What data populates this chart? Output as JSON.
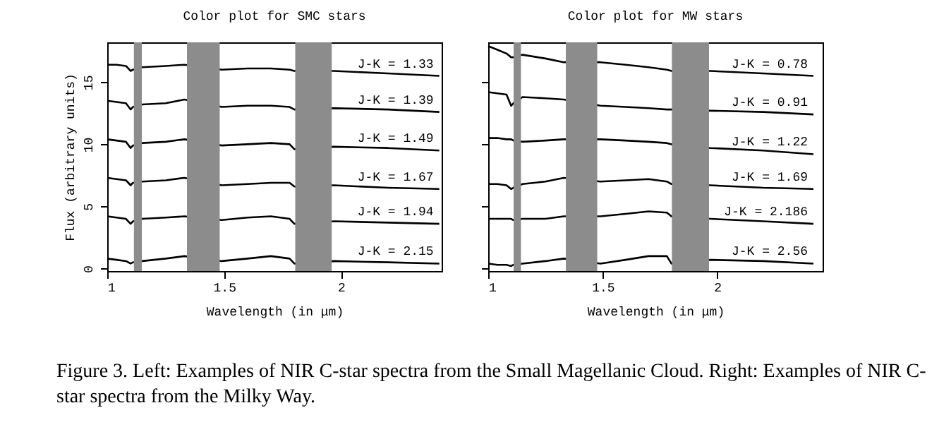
{
  "chart_data": [
    {
      "type": "line",
      "title": "Color plot for SMC stars",
      "xlabel": "Wavelength (in μm)",
      "ylabel": "Flux (arbitrary units)",
      "annotations": [
        "Figure 3. Left: Examples of NIR C-star spectra from the Small Magellanic Cloud. Right: Examples of NIR C-star spectra from the Milky Way."
      ],
      "x": [
        1.0,
        1.04,
        1.08,
        1.1,
        1.11,
        1.15,
        1.25,
        1.33,
        1.49,
        1.6,
        1.7,
        1.78,
        1.8,
        1.97,
        2.2,
        2.42
      ],
      "xlim": [
        1,
        2.43
      ],
      "xticks": [
        1,
        1.5,
        2
      ],
      "ylim": [
        -0.2,
        18.2
      ],
      "yticks": [
        0,
        5,
        10,
        15
      ],
      "bands": [
        {
          "axis": "x",
          "from": 1.114,
          "to": 1.148,
          "color": "#8c8c8c"
        },
        {
          "axis": "x",
          "from": 1.341,
          "to": 1.481,
          "color": "#8c8c8c"
        },
        {
          "axis": "x",
          "from": 1.804,
          "to": 1.96,
          "color": "#8c8c8c"
        }
      ],
      "series": [
        {
          "name": "J-K = 1.33",
          "color": "#000000",
          "values": [
            16.4,
            16.4,
            16.3,
            15.9,
            16.0,
            16.2,
            16.3,
            16.4,
            16.0,
            16.1,
            16.1,
            16.0,
            15.9,
            15.9,
            15.7,
            15.5
          ]
        },
        {
          "name": "J-K = 1.39",
          "color": "#000000",
          "values": [
            13.5,
            13.4,
            13.3,
            12.8,
            13.0,
            13.2,
            13.3,
            13.6,
            13.0,
            13.1,
            13.1,
            13.0,
            12.8,
            12.9,
            12.8,
            12.6
          ]
        },
        {
          "name": "J-K = 1.49",
          "color": "#000000",
          "values": [
            10.4,
            10.3,
            10.2,
            9.7,
            9.9,
            10.1,
            10.2,
            10.4,
            9.9,
            10.0,
            10.1,
            10.0,
            9.6,
            9.8,
            9.7,
            9.5
          ]
        },
        {
          "name": "J-K = 1.67",
          "color": "#000000",
          "values": [
            7.3,
            7.2,
            7.1,
            6.7,
            6.9,
            7.0,
            7.1,
            7.3,
            6.7,
            6.8,
            6.9,
            6.9,
            6.6,
            6.7,
            6.5,
            6.4
          ]
        },
        {
          "name": "J-K = 1.94",
          "color": "#000000",
          "values": [
            4.2,
            4.1,
            4.0,
            3.6,
            3.8,
            4.0,
            4.1,
            4.2,
            3.9,
            4.1,
            4.2,
            4.0,
            3.6,
            3.8,
            3.7,
            3.6
          ]
        },
        {
          "name": "J-K = 2.15",
          "color": "#000000",
          "values": [
            0.8,
            0.7,
            0.6,
            0.4,
            0.5,
            0.6,
            0.8,
            1.0,
            0.6,
            0.8,
            1.0,
            0.8,
            0.4,
            0.6,
            0.5,
            0.4
          ]
        }
      ]
    },
    {
      "type": "line",
      "title": "Color plot for MW stars",
      "xlabel": "Wavelength (in μm)",
      "tick_labels": "x",
      "x": [
        1.0,
        1.04,
        1.08,
        1.1,
        1.11,
        1.15,
        1.25,
        1.33,
        1.49,
        1.6,
        1.7,
        1.78,
        1.8,
        1.97,
        2.2,
        2.42
      ],
      "xlim": [
        1,
        2.46
      ],
      "xticks": [
        1,
        1.5,
        2
      ],
      "ylim": [
        -0.2,
        18.2
      ],
      "yticks": [
        0,
        5,
        10,
        15
      ],
      "bands": [
        {
          "axis": "x",
          "from": 1.111,
          "to": 1.143,
          "color": "#8c8c8c"
        },
        {
          "axis": "x",
          "from": 1.339,
          "to": 1.476,
          "color": "#8c8c8c"
        },
        {
          "axis": "x",
          "from": 1.802,
          "to": 1.964,
          "color": "#8c8c8c"
        }
      ],
      "series": [
        {
          "name": "J-K = 0.78",
          "color": "#000000",
          "values": [
            17.9,
            17.6,
            17.3,
            17.0,
            17.0,
            17.2,
            16.9,
            16.6,
            16.6,
            16.4,
            16.2,
            16.0,
            15.9,
            15.9,
            15.7,
            15.5
          ]
        },
        {
          "name": "J-K = 0.91",
          "color": "#000000",
          "values": [
            14.2,
            14.1,
            14.0,
            13.1,
            13.3,
            13.8,
            13.7,
            13.6,
            13.1,
            13.0,
            12.9,
            12.8,
            12.8,
            12.7,
            12.6,
            12.4
          ]
        },
        {
          "name": "J-K = 1.22",
          "color": "#000000",
          "values": [
            10.5,
            10.5,
            10.4,
            10.4,
            10.3,
            10.2,
            10.3,
            10.4,
            10.4,
            10.3,
            10.2,
            10.1,
            10.0,
            9.7,
            9.5,
            9.2
          ]
        },
        {
          "name": "J-K = 1.69",
          "color": "#000000",
          "values": [
            6.8,
            6.8,
            6.7,
            6.4,
            6.5,
            6.8,
            7.0,
            7.3,
            7.0,
            7.1,
            7.2,
            7.0,
            6.8,
            6.7,
            6.5,
            6.4
          ]
        },
        {
          "name": "J-K = 2.186",
          "color": "#000000",
          "values": [
            4.0,
            4.0,
            4.0,
            4.0,
            3.9,
            4.0,
            4.0,
            4.2,
            4.2,
            4.4,
            4.6,
            4.5,
            4.2,
            4.0,
            3.8,
            3.6
          ]
        },
        {
          "name": "J-K = 2.56",
          "color": "#000000",
          "values": [
            0.4,
            0.3,
            0.3,
            0.2,
            0.3,
            0.4,
            0.6,
            0.8,
            0.4,
            0.7,
            1.0,
            1.0,
            0.4,
            0.7,
            0.6,
            0.4
          ]
        }
      ]
    }
  ]
}
